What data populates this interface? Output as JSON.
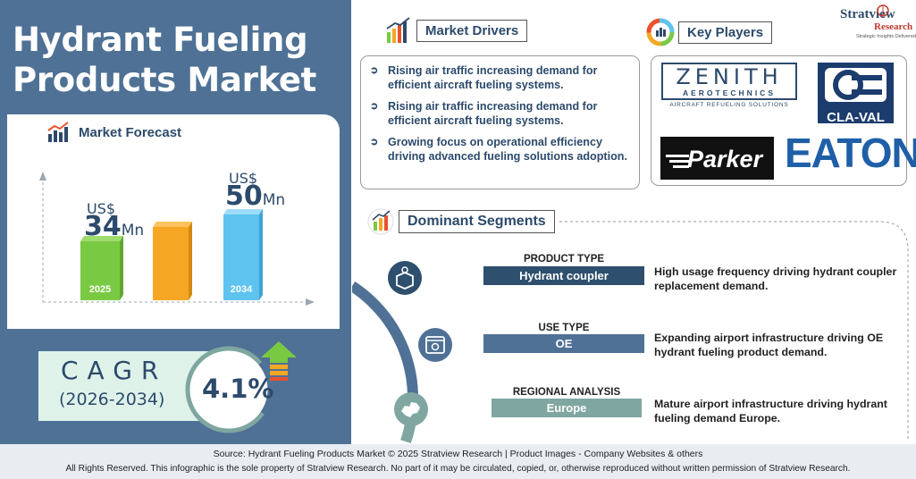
{
  "title": {
    "line1": "Hydrant Fueling",
    "line2": "Products Market"
  },
  "forecast": {
    "heading": "Market Forecast",
    "bar_start": {
      "currency": "US$",
      "value": "34",
      "unit": "Mn",
      "year": "2025"
    },
    "bar_end": {
      "currency": "US$",
      "value": "50",
      "unit": "Mn",
      "year": "2034"
    }
  },
  "cagr": {
    "label": "CAGR",
    "period": "(2026-2034)",
    "value": "4.1%"
  },
  "drivers": {
    "heading": "Market Drivers",
    "items": [
      "Rising air traffic increasing demand for efficient aircraft fueling systems.",
      "Rising air traffic increasing demand for efficient aircraft fueling systems.",
      "Growing focus on operational efficiency driving advanced fueling solutions adoption."
    ]
  },
  "players": {
    "heading": "Key Players",
    "logos": {
      "zenith_main": "ZENITH",
      "zenith_sub": "AEROTECHNICS",
      "zenith_tag": "AIRCRAFT REFUELING SOLUTIONS",
      "claval": "CLA-VAL",
      "parker": "Parker",
      "eaton": "EATON"
    }
  },
  "brand": {
    "name": "Stratview",
    "name2": "Research",
    "tagline": "Strategic Insights Delivered"
  },
  "segments": {
    "heading": "Dominant Segments",
    "items": [
      {
        "category": "PRODUCT TYPE",
        "value": "Hydrant coupler",
        "desc": "High usage frequency driving hydrant coupler replacement demand."
      },
      {
        "category": "USE TYPE",
        "value": "OE",
        "desc": "Expanding airport infrastructure driving OE hydrant fueling product demand."
      },
      {
        "category": "REGIONAL ANALYSIS",
        "value": "Europe",
        "desc": "Mature airport infrastructure driving hydrant fueling demand Europe."
      }
    ]
  },
  "footer": {
    "source": "Source:  Hydrant Fueling Products Market  © 2025 Stratview Research | Product Images  - Company Websites & others",
    "rights": "All Rights Reserved. This infographic is the sole property of Stratview Research. No part of it may be circulated, copied, or, otherwise reproduced without written permission of Stratview Research."
  },
  "colors": {
    "panel": "#4f7195",
    "navy": "#2c4a6b",
    "bar_green": "#7ac943",
    "bar_orange": "#f5a623",
    "bar_blue": "#5ec3ef",
    "seg_dark": "#2e4f6d",
    "seg_mid": "#4f7195",
    "seg_light": "#7fa6a0"
  }
}
